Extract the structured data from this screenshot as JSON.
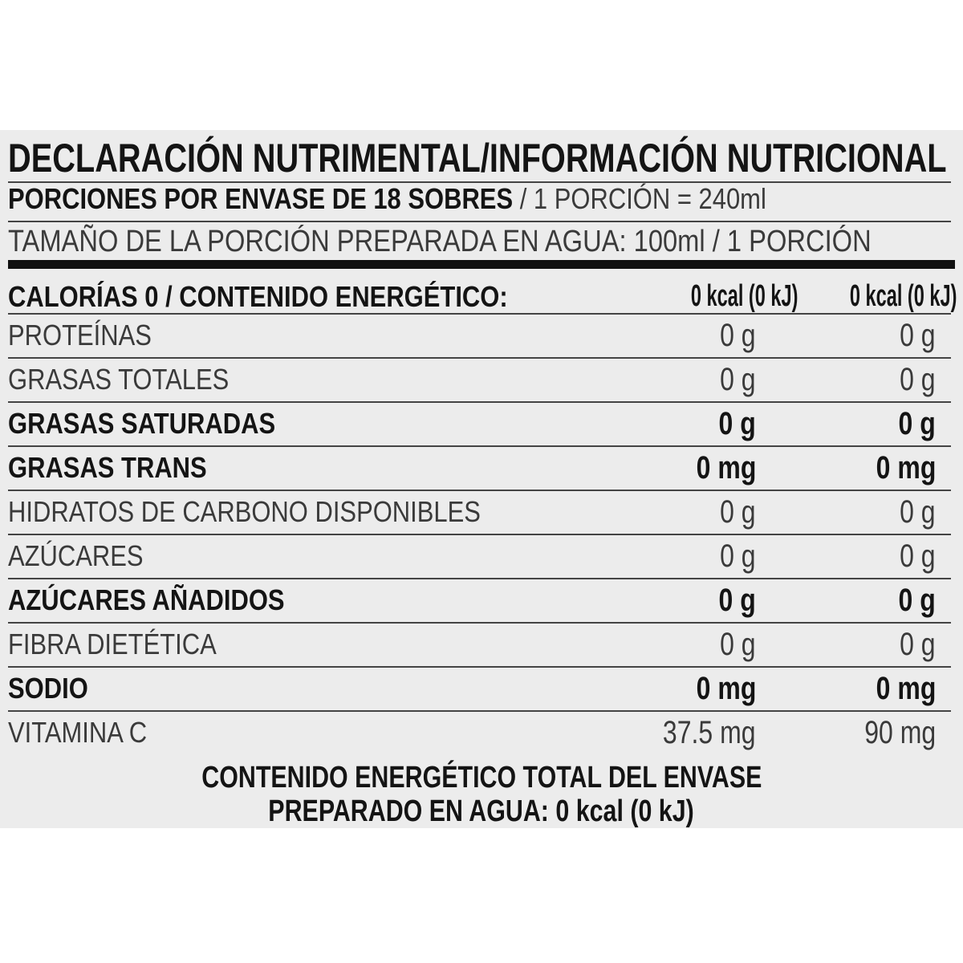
{
  "header": {
    "title": "DECLARACIÓN NUTRIMENTAL/INFORMACIÓN NUTRICIONAL",
    "servings_bold": "PORCIONES POR ENVASE DE 18 SOBRES",
    "servings_rest": "/ 1 PORCIÓN = 240ml",
    "serving_size": "TAMAÑO DE LA PORCIÓN PREPARADA EN AGUA: 100ml / 1 PORCIÓN"
  },
  "energy": {
    "label": "CALORÍAS 0 / CONTENIDO ENERGÉTICO:",
    "col1": "0 kcal (0 kJ)",
    "col2": "0 kcal (0 kJ)"
  },
  "rows": [
    {
      "label": "PROTEÍNAS",
      "col1": "0 g",
      "col2": "0 g",
      "bold": false
    },
    {
      "label": "GRASAS TOTALES",
      "col1": "0 g",
      "col2": "0 g",
      "bold": false
    },
    {
      "label": "GRASAS SATURADAS",
      "col1": "0 g",
      "col2": "0 g",
      "bold": true
    },
    {
      "label": "GRASAS TRANS",
      "col1": "0 mg",
      "col2": "0 mg",
      "bold": true
    },
    {
      "label": "HIDRATOS DE CARBONO DISPONIBLES",
      "col1": "0 g",
      "col2": "0 g",
      "bold": false
    },
    {
      "label": "AZÚCARES",
      "col1": "0 g",
      "col2": "0 g",
      "bold": false
    },
    {
      "label": "AZÚCARES AÑADIDOS",
      "col1": "0 g",
      "col2": "0 g",
      "bold": true
    },
    {
      "label": "FIBRA DIETÉTICA",
      "col1": "0 g",
      "col2": "0 g",
      "bold": false
    },
    {
      "label": "SODIO",
      "col1": "0 mg",
      "col2": "0 mg",
      "bold": true
    },
    {
      "label": "VITAMINA C",
      "col1": "37.5 mg",
      "col2": "90 mg",
      "bold": false
    }
  ],
  "footer": {
    "line1": "CONTENIDO ENERGÉTICO TOTAL DEL ENVASE",
    "line2": "PREPARADO EN AGUA: 0 kcal (0 kJ)"
  }
}
